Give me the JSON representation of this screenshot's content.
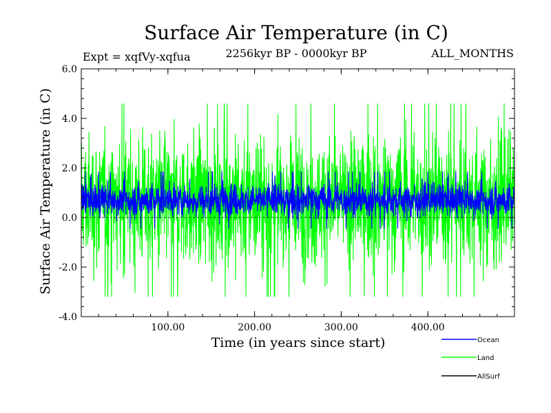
{
  "header": {
    "expt": "Expt = xqfVy-xqfua",
    "period": "2256kyr BP - 0000kyr BP",
    "months": "ALL_MONTHS"
  },
  "colors": {
    "ocean": "#0000ff",
    "land": "#00ff00",
    "allsurf": "#000000",
    "axis": "#000000",
    "zero_line": "#000000"
  },
  "chart_data": {
    "type": "line",
    "title": "Surface Air Temperature (in C)",
    "xlabel": "Time (in years since start)",
    "ylabel": "Surface Air Temperature (in C)",
    "xlim": [
      0,
      500
    ],
    "ylim": [
      -4.0,
      6.0
    ],
    "x_ticks": [
      100,
      200,
      300,
      400
    ],
    "x_tick_labels": [
      "100.00",
      "200.00",
      "300.00",
      "400.00"
    ],
    "y_ticks": [
      -4.0,
      -2.0,
      0.0,
      2.0,
      4.0,
      6.0
    ],
    "y_tick_labels": [
      "-4.0",
      "-2.0",
      "0.0",
      "2.0",
      "4.0",
      "6.0"
    ],
    "zero_line": 0.0,
    "legend_position": "bottom-right",
    "series": [
      {
        "name": "Land",
        "color": "#00ff00",
        "center": 0.7,
        "envelope_low": -3.2,
        "envelope_high": 4.6,
        "typical_low": -1.9,
        "typical_high": 3.6
      },
      {
        "name": "Ocean",
        "color": "#0000ff",
        "center": 0.7,
        "envelope_low": -0.45,
        "envelope_high": 1.85,
        "typical_low": 0.0,
        "typical_high": 1.5
      },
      {
        "name": "AllSurf",
        "color": "#000000"
      }
    ],
    "legend": [
      "Ocean",
      "Land",
      "AllSurf"
    ]
  }
}
